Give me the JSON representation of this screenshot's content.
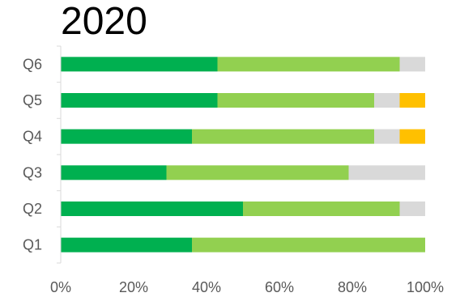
{
  "chart_data": {
    "type": "bar",
    "orientation": "horizontal",
    "stacked": true,
    "title": "2020",
    "categories": [
      "Q1",
      "Q2",
      "Q3",
      "Q4",
      "Q5",
      "Q6"
    ],
    "series": [
      {
        "color": "#00b050",
        "values": [
          0.36,
          0.5,
          0.29,
          0.36,
          0.43,
          0.43
        ]
      },
      {
        "color": "#92d050",
        "values": [
          0.64,
          0.43,
          0.5,
          0.5,
          0.43,
          0.5
        ]
      },
      {
        "color": "#d9d9d9",
        "values": [
          0.0,
          0.07,
          0.21,
          0.07,
          0.07,
          0.07
        ]
      },
      {
        "color": "#ffc000",
        "values": [
          0.0,
          0.0,
          0.0,
          0.07,
          0.07,
          0.0
        ]
      }
    ],
    "xticks": [
      "0%",
      "20%",
      "40%",
      "60%",
      "80%",
      "100%"
    ],
    "xlim": [
      0,
      1
    ],
    "grid": false,
    "legend": false
  }
}
